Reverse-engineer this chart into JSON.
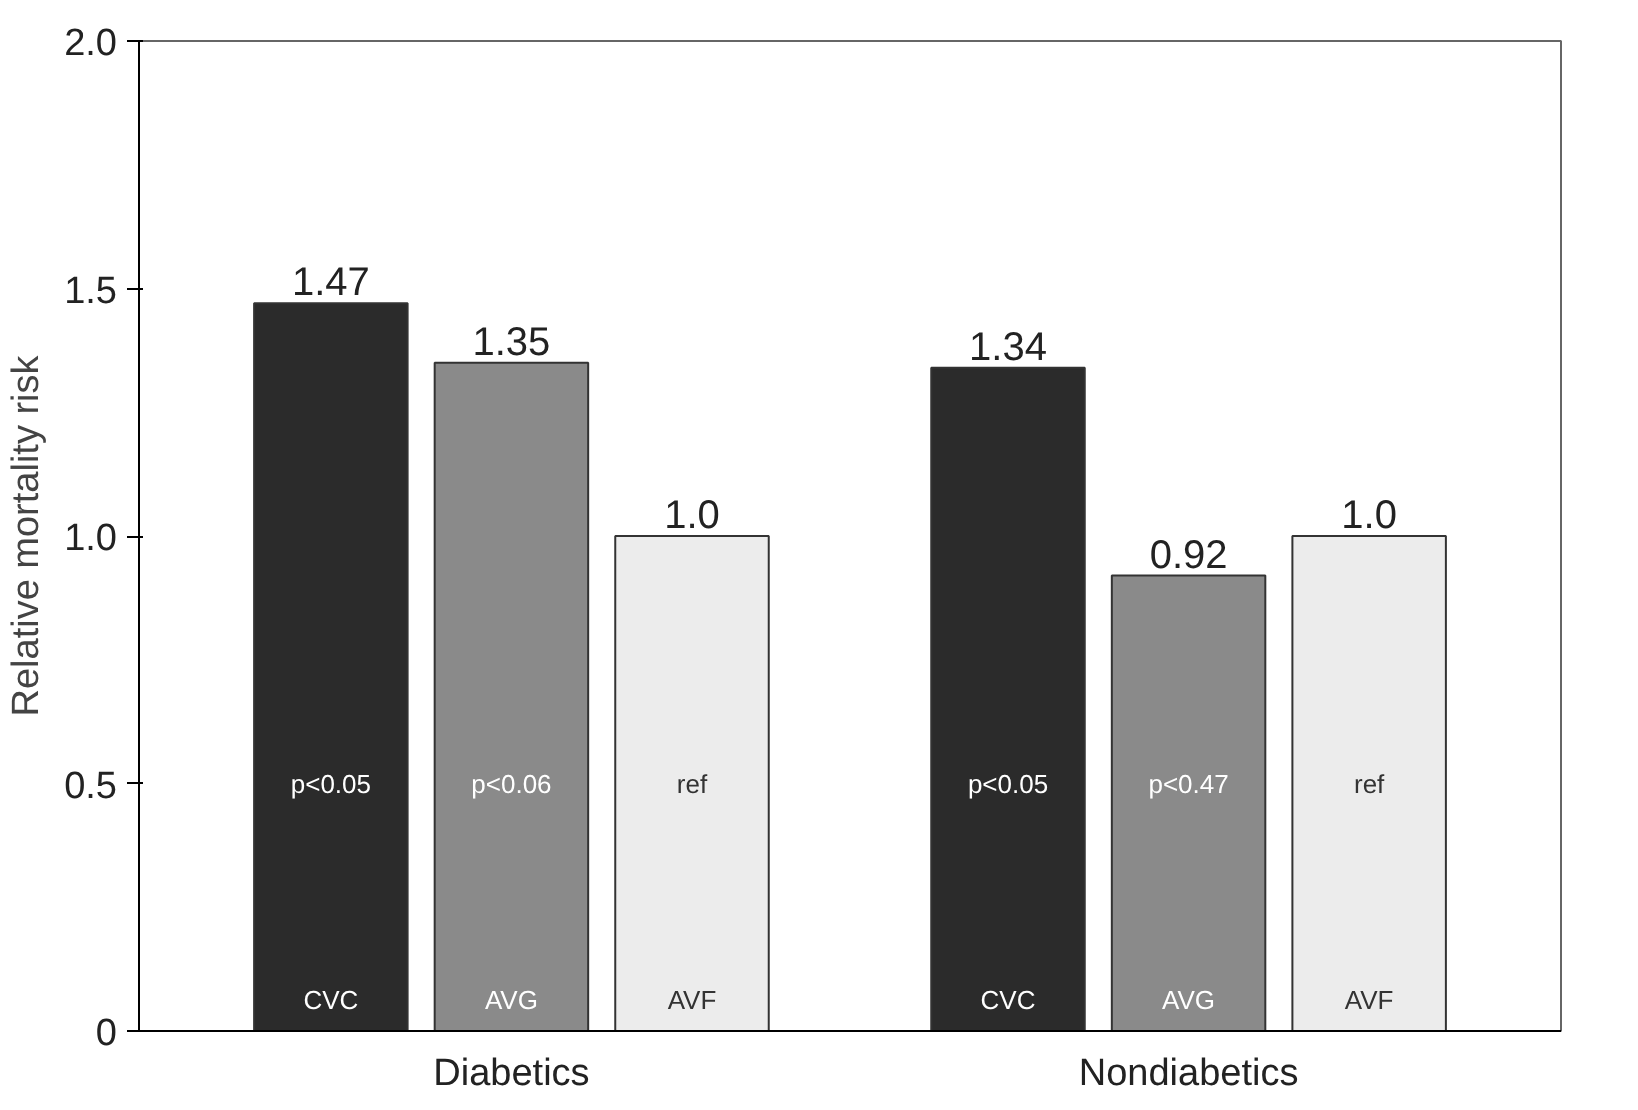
{
  "chart_data": {
    "type": "bar",
    "ylabel": "Relative mortality risk",
    "categories": [
      "Diabetics",
      "Nondiabetics"
    ],
    "series": [
      {
        "name": "CVC",
        "color": "#2b2b2b",
        "values": [
          1.47,
          1.34
        ],
        "value_labels": [
          "1.47",
          "1.34"
        ]
      },
      {
        "name": "AVG",
        "color": "#8a8a8a",
        "values": [
          1.35,
          0.92
        ],
        "value_labels": [
          "1.35",
          "0.92"
        ]
      },
      {
        "name": "AVF",
        "color": "#ececec",
        "values": [
          1.0,
          1.0
        ],
        "value_labels": [
          "1.0",
          "1.0"
        ]
      }
    ],
    "ylim": [
      0,
      2.0
    ],
    "yticks": [
      0,
      {
        "value": 0.5,
        "label": "0.5"
      },
      {
        "value": 1.0,
        "label": "1.0"
      },
      {
        "value": 1.5,
        "label": "1.5"
      },
      {
        "value": 2.0,
        "label": "2.0"
      }
    ],
    "annotations": [
      "p<0.05",
      "p<0.06",
      "ref",
      "p<0.05",
      "p<0.47",
      "ref"
    ],
    "grid": false
  }
}
